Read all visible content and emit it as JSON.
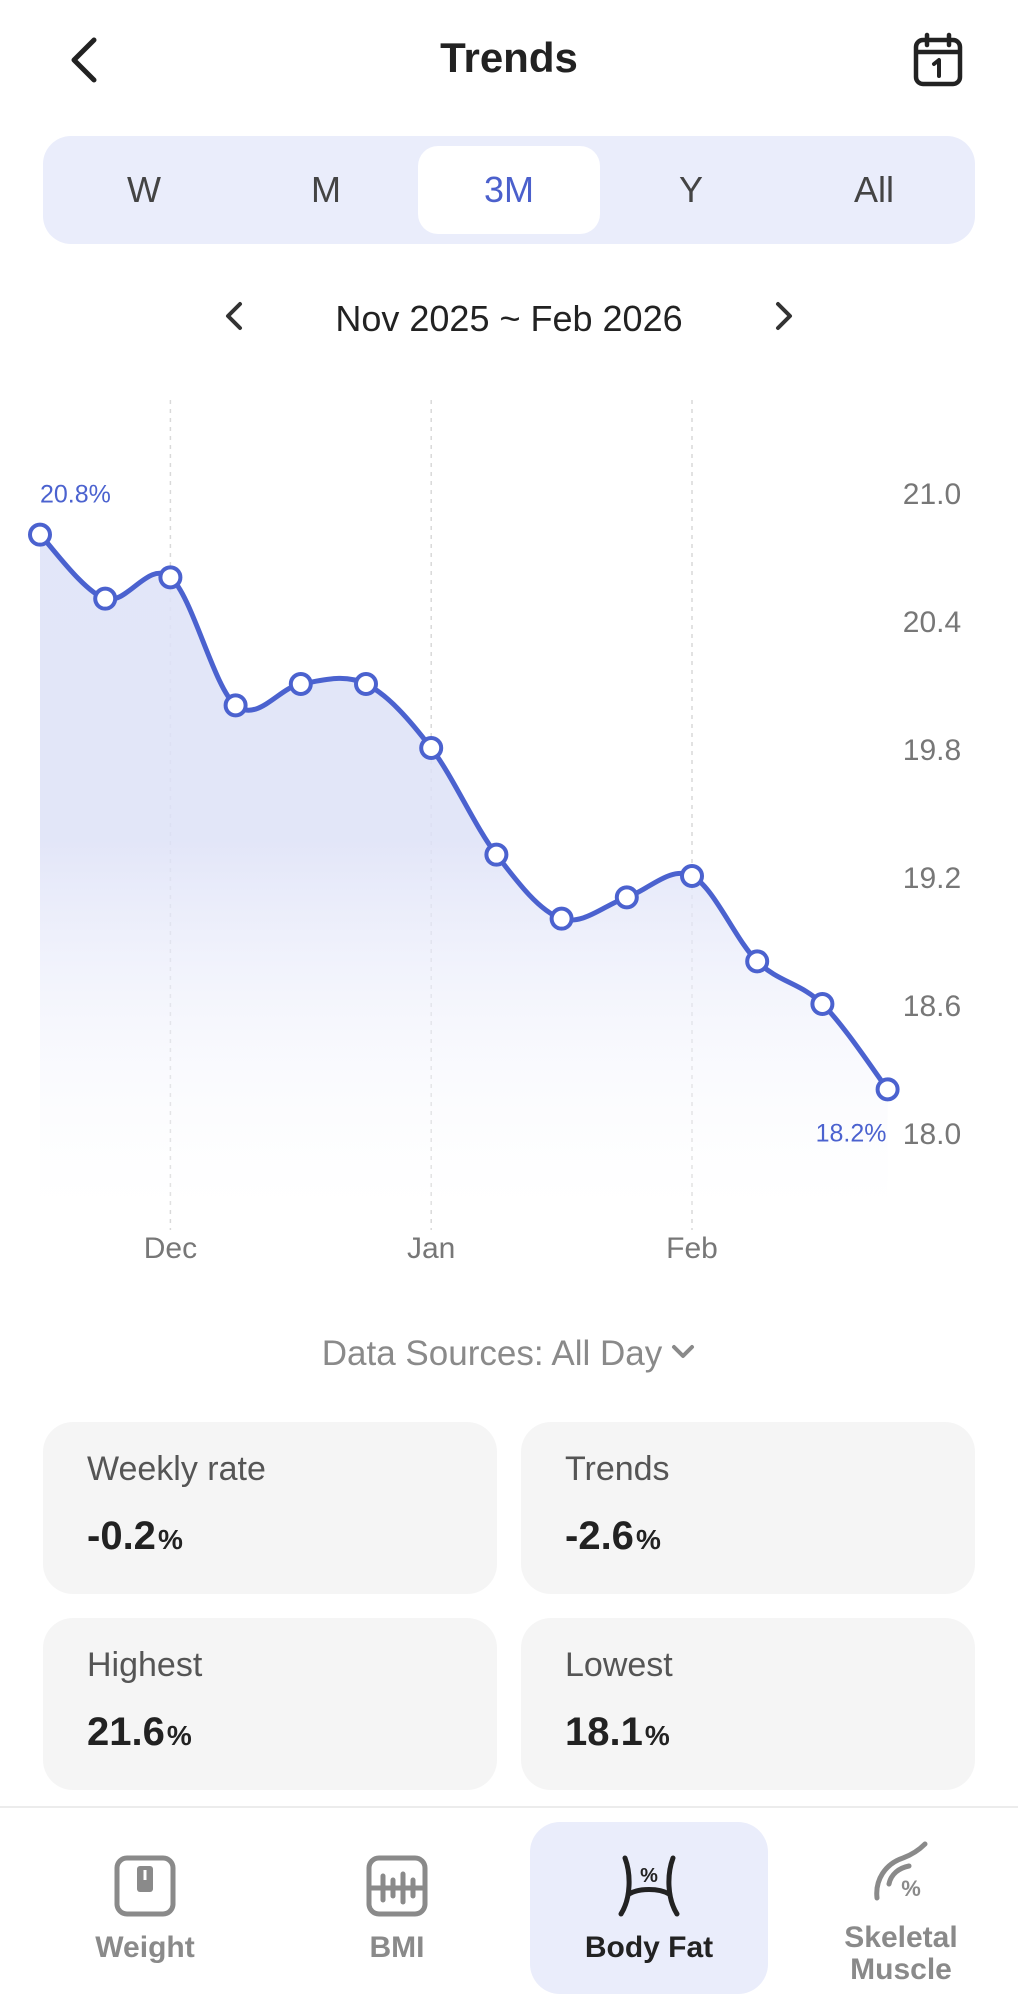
{
  "header": {
    "title": "Trends"
  },
  "period_tabs": [
    {
      "label": "W"
    },
    {
      "label": "M"
    },
    {
      "label": "3M"
    },
    {
      "label": "Y"
    },
    {
      "label": "All"
    }
  ],
  "active_period": "3M",
  "range": {
    "label": "Nov 2025 ~ Feb 2026"
  },
  "chart_data": {
    "type": "area",
    "series_label_start": "20.8%",
    "series_label_end": "18.2%",
    "values": [
      20.8,
      20.5,
      20.6,
      20.0,
      20.1,
      20.1,
      19.8,
      19.3,
      19.0,
      19.1,
      19.2,
      18.8,
      18.6,
      18.2
    ],
    "ylim": [
      18.0,
      21.0
    ],
    "y_ticks": [
      "21.0",
      "20.4",
      "19.8",
      "19.2",
      "18.6",
      "18.0"
    ],
    "x_ticks": [
      {
        "label": "Dec",
        "index": 2
      },
      {
        "label": "Jan",
        "index": 6
      },
      {
        "label": "Feb",
        "index": 10
      }
    ],
    "color": "#4b62cf"
  },
  "data_sources": {
    "label": "Data Sources: All Day"
  },
  "stats": {
    "weekly_rate": {
      "label": "Weekly rate",
      "value": "-0.2",
      "unit": "%"
    },
    "trends": {
      "label": "Trends",
      "value": "-2.6",
      "unit": "%"
    },
    "highest": {
      "label": "Highest",
      "value": "21.6",
      "unit": "%"
    },
    "lowest": {
      "label": "Lowest",
      "value": "18.1",
      "unit": "%"
    }
  },
  "bottom_tabs": {
    "weight": "Weight",
    "bmi": "BMI",
    "body_fat": "Body Fat",
    "skeletal_line1": "Skeletal",
    "skeletal_line2": "Muscle"
  },
  "icons": {
    "back": "chevron-left-icon",
    "calendar": "calendar-icon",
    "weight": "scale-icon",
    "bmi": "bmi-icon",
    "body_fat": "body-fat-icon",
    "skeletal": "skeletal-muscle-icon"
  }
}
